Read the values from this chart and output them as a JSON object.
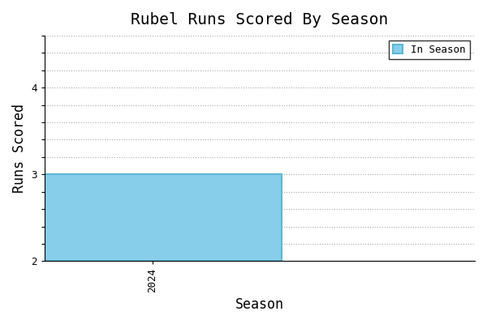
{
  "title": "Rubel Runs Scored By Season",
  "xlabel": "Season",
  "ylabel": "Runs Scored",
  "seasons": [
    2024
  ],
  "values": [
    3
  ],
  "bar_color": "#87CEEB",
  "bar_edgecolor": "#5BB8D4",
  "legend_label": "In Season",
  "ylim_min": 2.0,
  "ylim_max": 4.6,
  "ytick_values": [
    2.0,
    2.2,
    2.4,
    2.6,
    2.8,
    3.0,
    3.2,
    3.4,
    3.6,
    3.8,
    4.0,
    4.2,
    4.4,
    4.6
  ],
  "ytick_labels": [
    "2",
    "",
    "",
    "",
    "",
    "3",
    "",
    "",
    "",
    "",
    "4",
    "",
    "",
    ""
  ],
  "xlim_min": 2023.5,
  "xlim_max": 2025.5,
  "bar_width": 1.2,
  "bar_bottom": 2,
  "bar_height": 1,
  "background_color": "#ffffff",
  "grid_color": "#aaaaaa",
  "title_fontsize": 14,
  "label_fontsize": 12,
  "tick_fontsize": 9,
  "font_family": "monospace"
}
